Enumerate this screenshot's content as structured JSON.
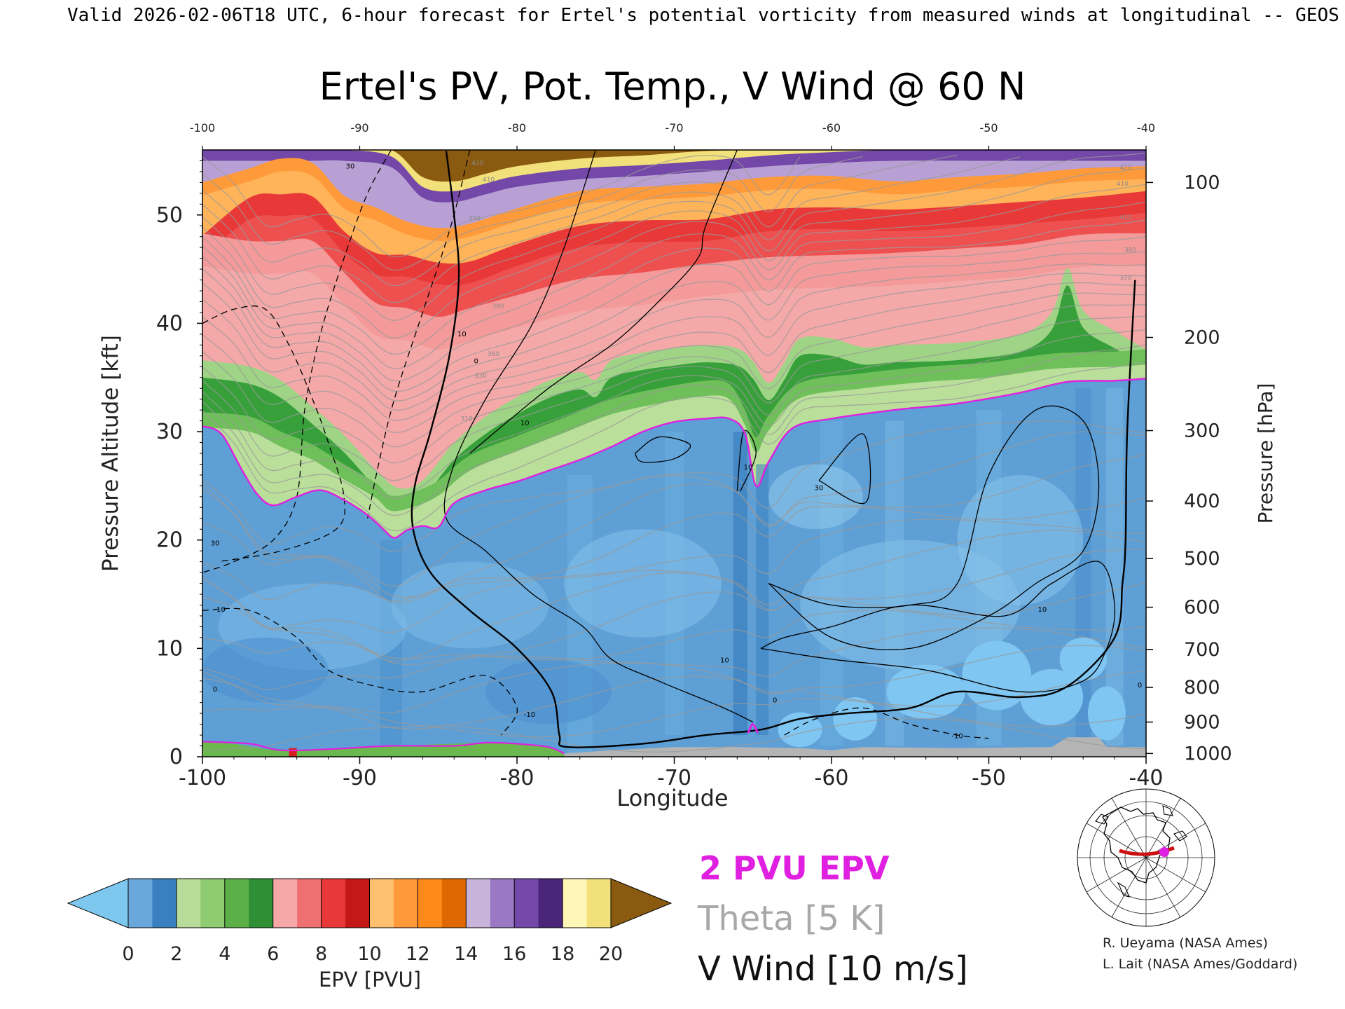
{
  "header": {
    "caption": "Valid 2026-02-06T18 UTC, 6-hour forecast for Ertel's potential vorticity from measured winds at longitudinal -- GEOS"
  },
  "chart_data": {
    "type": "heatmap",
    "title": "Ertel's PV, Pot. Temp., V Wind @ 60 N",
    "xlabel": "Longitude",
    "ylabel": "Pressure Altitude [kft]",
    "y2label": "Pressure [hPa]",
    "xlim": [
      -100,
      -40
    ],
    "ylim": [
      0,
      56
    ],
    "x_ticks": [
      "-100",
      "-90",
      "-80",
      "-70",
      "-60",
      "-50",
      "-40"
    ],
    "x_ticks_top": [
      "-100",
      "-90",
      "-80",
      "-70",
      "-60",
      "-50",
      "-40"
    ],
    "y_ticks": [
      {
        "value": 0,
        "label": "0"
      },
      {
        "value": 10,
        "label": "10"
      },
      {
        "value": 20,
        "label": "20"
      },
      {
        "value": 30,
        "label": "30"
      },
      {
        "value": 40,
        "label": "40"
      },
      {
        "value": 50,
        "label": "50"
      }
    ],
    "pressure_ticks": [
      {
        "label": "100",
        "kft": 53.0
      },
      {
        "label": "200",
        "kft": 38.7
      },
      {
        "label": "300",
        "kft": 30.1
      },
      {
        "label": "400",
        "kft": 23.6
      },
      {
        "label": "500",
        "kft": 18.3
      },
      {
        "label": "600",
        "kft": 13.8
      },
      {
        "label": "700",
        "kft": 9.9
      },
      {
        "label": "800",
        "kft": 6.4
      },
      {
        "label": "900",
        "kft": 3.2
      },
      {
        "label": "1000",
        "kft": 0.3
      }
    ],
    "tropopause_2pvu": [
      [
        -100,
        30.5
      ],
      [
        -98.8,
        29.8
      ],
      [
        -97.5,
        26.5
      ],
      [
        -96.5,
        24.2
      ],
      [
        -95.5,
        23.2
      ],
      [
        -94,
        24.0
      ],
      [
        -92.5,
        24.6
      ],
      [
        -91,
        23.7
      ],
      [
        -89.5,
        22.3
      ],
      [
        -88.5,
        21.0
      ],
      [
        -87.8,
        20.2
      ],
      [
        -87,
        20.9
      ],
      [
        -86,
        21.3
      ],
      [
        -85,
        21.2
      ],
      [
        -84,
        23.4
      ],
      [
        -82,
        24.6
      ],
      [
        -80,
        25.4
      ],
      [
        -78,
        26.4
      ],
      [
        -76,
        27.4
      ],
      [
        -74,
        28.6
      ],
      [
        -72,
        30.0
      ],
      [
        -70,
        30.9
      ],
      [
        -68,
        31.2
      ],
      [
        -66.5,
        31.2
      ],
      [
        -65.5,
        29.8
      ],
      [
        -64.8,
        25.0
      ],
      [
        -64,
        27.2
      ],
      [
        -62.5,
        30.3
      ],
      [
        -60,
        31.2
      ],
      [
        -56,
        32.0
      ],
      [
        -52,
        32.6
      ],
      [
        -48,
        33.6
      ],
      [
        -45,
        34.6
      ],
      [
        -42,
        34.7
      ],
      [
        -40,
        34.9
      ]
    ],
    "tropopause_surface": [
      [
        -100,
        1.4
      ],
      [
        -97,
        1.2
      ],
      [
        -95,
        0.6
      ],
      [
        -92,
        0.7
      ],
      [
        -88,
        1.0
      ],
      [
        -84,
        1.0
      ],
      [
        -82,
        1.3
      ],
      [
        -80,
        1.2
      ],
      [
        -78,
        0.9
      ],
      [
        -77,
        0.3
      ]
    ],
    "bands_kft": {
      "green_top": [
        [
          -100,
          36.2
        ],
        [
          -97,
          35.6
        ],
        [
          -95,
          34.3
        ],
        [
          -93,
          31.9
        ],
        [
          -91,
          29.3
        ],
        [
          -89,
          26.1
        ],
        [
          -87.5,
          24.4
        ],
        [
          -86,
          25.1
        ],
        [
          -84,
          28.6
        ],
        [
          -82,
          31.0
        ],
        [
          -80,
          32.8
        ],
        [
          -78,
          34.3
        ],
        [
          -76,
          35.1
        ],
        [
          -75,
          34.4
        ],
        [
          -74,
          36.2
        ],
        [
          -72,
          36.9
        ],
        [
          -70,
          37.3
        ],
        [
          -68,
          37.6
        ],
        [
          -66,
          37.3
        ],
        [
          -65,
          36.1
        ],
        [
          -64,
          34.1
        ],
        [
          -63,
          36.0
        ],
        [
          -62,
          38.2
        ],
        [
          -60,
          38.2
        ],
        [
          -58,
          37.4
        ],
        [
          -56,
          37.6
        ],
        [
          -52,
          37.8
        ],
        [
          -48,
          38.6
        ],
        [
          -46,
          40.6
        ],
        [
          -45,
          44.7
        ],
        [
          -44,
          40.8
        ],
        [
          -42,
          38.9
        ],
        [
          -40,
          37.2
        ]
      ],
      "green_base": [
        [
          -100,
          29.6
        ],
        [
          -97,
          29.2
        ],
        [
          -95,
          27.8
        ],
        [
          -93,
          26.6
        ],
        [
          -91,
          24.8
        ],
        [
          -89,
          23.1
        ],
        [
          -88,
          21.9
        ],
        [
          -86.5,
          22.3
        ],
        [
          -85,
          23.3
        ],
        [
          -83,
          25.6
        ],
        [
          -80,
          27.4
        ],
        [
          -77,
          29.1
        ],
        [
          -74,
          30.8
        ],
        [
          -71,
          31.8
        ],
        [
          -68,
          32.5
        ],
        [
          -66.5,
          32.2
        ],
        [
          -65.5,
          29.8
        ],
        [
          -64.8,
          27.3
        ],
        [
          -64,
          29.3
        ],
        [
          -62,
          32.3
        ],
        [
          -58,
          33.2
        ],
        [
          -54,
          33.8
        ],
        [
          -50,
          34.2
        ],
        [
          -46,
          35.0
        ],
        [
          -42,
          35.2
        ],
        [
          -40,
          35.4
        ]
      ],
      "pink_top": [
        [
          -100,
          48.3
        ],
        [
          -97,
          47.6
        ],
        [
          -95,
          47.6
        ],
        [
          -93,
          47.6
        ],
        [
          -91,
          44.7
        ],
        [
          -89,
          41.9
        ],
        [
          -87,
          41.4
        ],
        [
          -85,
          40.6
        ],
        [
          -83,
          41.4
        ],
        [
          -80,
          42.6
        ],
        [
          -76,
          44.1
        ],
        [
          -72,
          44.7
        ],
        [
          -68,
          45.5
        ],
        [
          -64,
          46.1
        ],
        [
          -60,
          46.3
        ],
        [
          -56,
          46.5
        ],
        [
          -52,
          46.9
        ],
        [
          -48,
          47.3
        ],
        [
          -44,
          48.2
        ],
        [
          -40,
          48.3
        ]
      ],
      "red_top": [
        [
          -100,
          48.1
        ],
        [
          -97,
          51.6
        ],
        [
          -95,
          51.9
        ],
        [
          -93,
          51.7
        ],
        [
          -91,
          48.5
        ],
        [
          -89,
          46.5
        ],
        [
          -87,
          46.3
        ],
        [
          -85,
          45.6
        ],
        [
          -83,
          45.7
        ],
        [
          -80,
          47.3
        ],
        [
          -76,
          49.0
        ],
        [
          -72,
          49.5
        ],
        [
          -68,
          49.6
        ],
        [
          -64,
          50.5
        ],
        [
          -60,
          50.7
        ],
        [
          -56,
          50.5
        ],
        [
          -52,
          50.8
        ],
        [
          -48,
          51.2
        ],
        [
          -44,
          51.6
        ],
        [
          -40,
          52.2
        ]
      ],
      "orange_top": [
        [
          -100,
          53.0
        ],
        [
          -97,
          54.3
        ],
        [
          -95,
          55.2
        ],
        [
          -93,
          54.8
        ],
        [
          -91,
          51.8
        ],
        [
          -89,
          50.7
        ],
        [
          -87,
          49.4
        ],
        [
          -85,
          48.8
        ],
        [
          -83,
          49.2
        ],
        [
          -80,
          50.6
        ],
        [
          -76,
          52.2
        ],
        [
          -72,
          52.6
        ],
        [
          -68,
          52.9
        ],
        [
          -64,
          53.5
        ],
        [
          -60,
          53.6
        ],
        [
          -56,
          53.1
        ],
        [
          -52,
          53.5
        ],
        [
          -48,
          53.8
        ],
        [
          -44,
          54.3
        ],
        [
          -40,
          54.5
        ]
      ],
      "purple_top": [
        [
          -100,
          56.0
        ],
        [
          -97,
          56.0
        ],
        [
          -95,
          56.0
        ],
        [
          -93,
          56.0
        ],
        [
          -91,
          56.0
        ],
        [
          -88,
          55.4
        ],
        [
          -86,
          52.6
        ],
        [
          -84,
          52.2
        ],
        [
          -82,
          52.9
        ],
        [
          -80,
          53.6
        ],
        [
          -76,
          54.3
        ],
        [
          -72,
          54.6
        ],
        [
          -68,
          55.0
        ],
        [
          -64,
          55.5
        ],
        [
          -60,
          55.8
        ],
        [
          -56,
          56.0
        ],
        [
          -50,
          56.0
        ],
        [
          -44,
          56.0
        ],
        [
          -40,
          56.0
        ]
      ]
    },
    "theta_contour_labels": [
      {
        "x": -82.5,
        "y": 54.6,
        "label": "420"
      },
      {
        "x": -81.8,
        "y": 53.1,
        "label": "410"
      },
      {
        "x": -82.7,
        "y": 49.5,
        "label": "390"
      },
      {
        "x": -81.2,
        "y": 41.4,
        "label": "380"
      },
      {
        "x": -81.5,
        "y": 37.0,
        "label": "360"
      },
      {
        "x": -82.3,
        "y": 35.0,
        "label": "330"
      },
      {
        "x": -41.3,
        "y": 54.2,
        "label": "420"
      },
      {
        "x": -41.5,
        "y": 52.7,
        "label": "410"
      },
      {
        "x": -41.3,
        "y": 49.6,
        "label": "400"
      },
      {
        "x": -41.0,
        "y": 46.6,
        "label": "380"
      },
      {
        "x": -41.3,
        "y": 44.0,
        "label": "370"
      },
      {
        "x": -83.2,
        "y": 31.0,
        "label": "310"
      }
    ],
    "vwind_contours": {
      "zero": [
        [
          -84.5,
          55.9
        ],
        [
          -84,
          50
        ],
        [
          -83.7,
          44
        ],
        [
          -84.3,
          37
        ],
        [
          -85.5,
          30
        ],
        [
          -86.5,
          25
        ],
        [
          -86.6,
          21
        ],
        [
          -85.5,
          17
        ],
        [
          -83,
          13.5
        ],
        [
          -80,
          10
        ],
        [
          -77.8,
          6
        ],
        [
          -77.3,
          2
        ],
        [
          -76.8,
          0.9
        ],
        [
          -72,
          1.2
        ],
        [
          -68,
          2.0
        ],
        [
          -64.5,
          2.5
        ],
        [
          -62,
          3.5
        ],
        [
          -59,
          4.0
        ],
        [
          -55,
          4.5
        ],
        [
          -52,
          6.0
        ],
        [
          -48,
          5.5
        ],
        [
          -45,
          6.5
        ],
        [
          -42,
          11
        ],
        [
          -41.5,
          16
        ],
        [
          -41.3,
          20
        ],
        [
          -41.2,
          30
        ],
        [
          -40.7,
          44
        ]
      ],
      "ten_pos": [
        [
          -75,
          56
        ],
        [
          -77,
          47
        ],
        [
          -79,
          40
        ],
        [
          -82,
          33
        ],
        [
          -84,
          27
        ],
        [
          -84.5,
          22
        ],
        [
          -82,
          19
        ],
        [
          -79,
          15
        ],
        [
          -75.8,
          12
        ],
        [
          -74,
          9
        ],
        [
          -71,
          7
        ],
        [
          -67,
          4.6
        ],
        [
          -65,
          3.2
        ]
      ],
      "thirty_pos": [
        [
          -66,
          56
        ],
        [
          -68,
          49
        ],
        [
          -68.5,
          46
        ],
        [
          -71,
          42
        ],
        [
          -74,
          38
        ],
        [
          -78,
          34
        ],
        [
          -83,
          28
        ]
      ],
      "dashed_neg": [
        [
          [
            -83,
            56
          ],
          [
            -84.2,
            49
          ],
          [
            -86,
            41
          ],
          [
            -87.8,
            33
          ],
          [
            -88.8,
            27
          ],
          [
            -89.5,
            22
          ]
        ],
        [
          [
            -88,
            56
          ],
          [
            -89.5,
            52
          ],
          [
            -91,
            46
          ],
          [
            -92.5,
            39
          ],
          [
            -93.5,
            32
          ],
          [
            -94,
            24
          ],
          [
            -95.5,
            20
          ],
          [
            -98,
            18
          ],
          [
            -100,
            17
          ]
        ],
        [
          [
            -100,
            40
          ],
          [
            -98,
            41.3
          ],
          [
            -96,
            41.3
          ],
          [
            -94.5,
            38
          ],
          [
            -93,
            33
          ],
          [
            -92,
            29
          ],
          [
            -91,
            24
          ],
          [
            -91.5,
            21
          ],
          [
            -95,
            19
          ],
          [
            -99,
            18
          ]
        ],
        [
          [
            -100,
            13.5
          ],
          [
            -97,
            13.5
          ],
          [
            -94,
            11
          ],
          [
            -92,
            8
          ],
          [
            -89,
            6.5
          ],
          [
            -86,
            6
          ],
          [
            -82,
            7.5
          ],
          [
            -80,
            4.5
          ],
          [
            -81,
            2
          ]
        ],
        [
          [
            -63,
            2
          ],
          [
            -61,
            3.5
          ],
          [
            -58,
            4.5
          ],
          [
            -55,
            3.0
          ],
          [
            -52,
            2.0
          ],
          [
            -50,
            1.7
          ]
        ]
      ],
      "labels": [
        {
          "x": -90.6,
          "y": 54.3,
          "label": "30"
        },
        {
          "x": -83.5,
          "y": 38.8,
          "label": "10"
        },
        {
          "x": -82.6,
          "y": 36.3,
          "label": "0"
        },
        {
          "x": -79.5,
          "y": 30.6,
          "label": "10"
        },
        {
          "x": -65.3,
          "y": 26.5,
          "label": "10"
        },
        {
          "x": -60.8,
          "y": 24.6,
          "label": "30"
        },
        {
          "x": -99.2,
          "y": 19.5,
          "label": "30"
        },
        {
          "x": -98.9,
          "y": 13.4,
          "label": "-10"
        },
        {
          "x": -99.2,
          "y": 6.0,
          "label": "0"
        },
        {
          "x": -79.2,
          "y": 3.7,
          "label": "-10"
        },
        {
          "x": -66.8,
          "y": 8.7,
          "label": "10"
        },
        {
          "x": -63.6,
          "y": 5.0,
          "label": "0"
        },
        {
          "x": -52.0,
          "y": 1.7,
          "label": "-10"
        },
        {
          "x": -46.6,
          "y": 13.4,
          "label": "10"
        },
        {
          "x": -40.4,
          "y": 6.4,
          "label": "0"
        }
      ]
    },
    "colorbar": {
      "label": "EPV [PVU]",
      "ticks": [
        "0",
        "2",
        "4",
        "6",
        "8",
        "10",
        "12",
        "14",
        "16",
        "18",
        "20"
      ],
      "under_color": "#7ec8f0",
      "over_color": "#8a5a10",
      "stops": [
        "#6aa8dc",
        "#3a7fc0",
        "#b8dd9a",
        "#8fcb70",
        "#5cb048",
        "#2e8f34",
        "#f6a8a8",
        "#ee7070",
        "#e83838",
        "#c41818",
        "#ffc070",
        "#ff9a3a",
        "#ff8a1a",
        "#e06800",
        "#c8b4da",
        "#9a78c4",
        "#7448a8",
        "#4a2478",
        "#fff7b8",
        "#f2e07a"
      ]
    },
    "colors": {
      "troposphere_blue": "#5e9fd6",
      "tropopause_line": "#e020e0",
      "theta_lines": "#9a9a9a",
      "vwind_lines": "#000000",
      "surface_gray": "#b4b4b4",
      "lowlevel_light_blue": "#7fc6f2"
    }
  },
  "legend": {
    "pvu_label": "2 PVU EPV",
    "theta_label": "Theta [5 K]",
    "vwind_label": "V Wind [10 m/s]",
    "pvu_color": "#e020e0",
    "theta_color": "#a8a8a8",
    "vwind_color": "#000000"
  },
  "locator_map": {
    "marker_color": "#e020e0",
    "section_color": "#cc1010"
  },
  "credits": {
    "line1": "R. Ueyama (NASA Ames)",
    "line2": "L. Lait (NASA Ames/Goddard)"
  }
}
